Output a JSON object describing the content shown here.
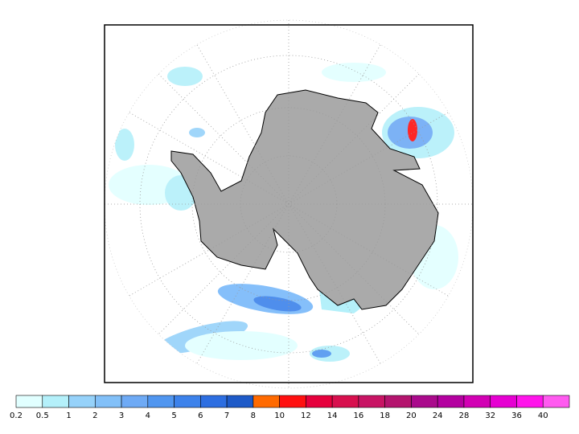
{
  "colorbar": {
    "labels": [
      "0.2",
      "0.5",
      "1",
      "2",
      "3",
      "4",
      "5",
      "6",
      "7",
      "8",
      "10",
      "12",
      "14",
      "16",
      "18",
      "20",
      "24",
      "28",
      "32",
      "36",
      "40"
    ],
    "colors": [
      "#e1ffff",
      "#b4f0fa",
      "#96d2fa",
      "#82c0f8",
      "#6eaaf5",
      "#5096f0",
      "#3c82eb",
      "#2d6ee1",
      "#1e5ac8",
      "#ff6a00",
      "#ff1010",
      "#e6003c",
      "#d8104e",
      "#c81464",
      "#b4146e",
      "#aa0a8c",
      "#b400a0",
      "#d200b4",
      "#e600d2",
      "#ff14eb",
      "#ff5af0"
    ]
  }
}
